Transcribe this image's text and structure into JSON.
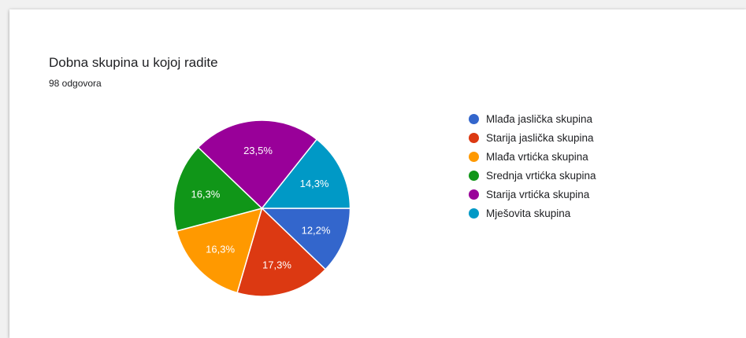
{
  "chart_data": {
    "type": "pie",
    "title": "Dobna skupina u kojoj radite",
    "subtitle": "98 odgovora",
    "categories": [
      "Mlađa jaslička skupina",
      "Starija jaslička skupina",
      "Mlađa vrtićka skupina",
      "Srednja vrtićka skupina",
      "Starija vrtićka skupina",
      "Mješovita skupina"
    ],
    "values": [
      12.2,
      17.3,
      16.3,
      16.3,
      23.5,
      14.3
    ],
    "labels": [
      "12,2%",
      "17,3%",
      "16,3%",
      "16,3%",
      "23,5%",
      "14,3%"
    ],
    "colors": [
      "#3366cc",
      "#dc3912",
      "#ff9900",
      "#109618",
      "#990099",
      "#0099c6"
    ],
    "legend_position": "right"
  }
}
